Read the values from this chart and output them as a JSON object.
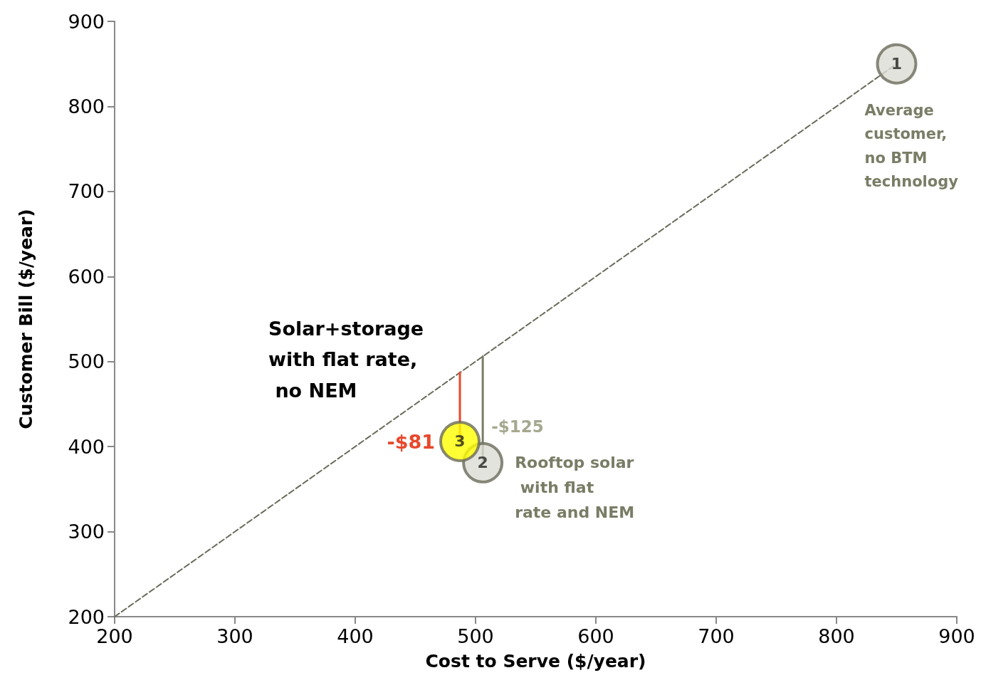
{
  "chart_data": {
    "type": "scatter",
    "xlabel": "Cost to Serve ($/year)",
    "ylabel": "Customer Bill ($/year)",
    "xlim": [
      200,
      900
    ],
    "xticks": [
      200,
      300,
      400,
      500,
      600,
      700,
      800,
      900
    ],
    "ylim": [
      200,
      900
    ],
    "yticks": [
      200,
      300,
      400,
      500,
      600,
      700,
      800,
      900
    ],
    "grid": false,
    "legend": false,
    "series": [
      {
        "type": "line",
        "x": [
          200,
          850
        ],
        "values": [
          200,
          850
        ],
        "color": "#6b6b5b",
        "line_style": "dashed",
        "marker": "none"
      },
      {
        "type": "line",
        "x": [
          487,
          487
        ],
        "values": [
          487,
          406
        ],
        "color": "#e8482c",
        "line_style": "solid",
        "marker": "none"
      },
      {
        "type": "line",
        "x": [
          506,
          506
        ],
        "values": [
          506,
          381
        ],
        "color": "#7a7d66",
        "line_style": "solid",
        "marker": "none"
      },
      {
        "name": "1",
        "x": [
          850
        ],
        "values": [
          850
        ],
        "color": "#dcdcd4",
        "marker": "circle"
      },
      {
        "name": "2",
        "x": [
          506
        ],
        "values": [
          381
        ],
        "color": "#dcdcd4",
        "marker": "circle"
      },
      {
        "name": "3",
        "x": [
          487
        ],
        "values": [
          406
        ],
        "color": "#ffff00",
        "marker": "circle"
      }
    ],
    "annotations": [
      {
        "text": "Average customer, no BTM technology",
        "x": 850,
        "y": 850
      },
      {
        "text": "Rooftop solar with flat rate and NEM",
        "x": 506,
        "y": 381
      },
      "Solar+storage with flat rate, no NEM",
      {
        "text": "-$81",
        "x": 487,
        "y": 446
      },
      {
        "text": "-$125",
        "x": 506,
        "y": 443
      }
    ]
  }
}
